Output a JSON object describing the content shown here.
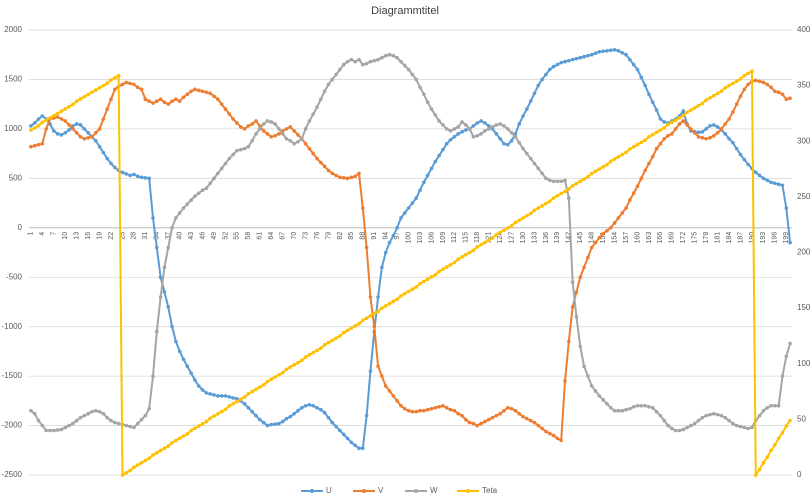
{
  "chart_data": {
    "type": "line",
    "title": "Diagrammtitel",
    "categories": [
      1,
      null,
      null,
      4,
      null,
      null,
      7,
      null,
      null,
      10,
      null,
      null,
      13,
      null,
      null,
      16,
      null,
      null,
      19,
      null,
      null,
      22,
      null,
      null,
      25,
      null,
      null,
      28,
      null,
      null,
      31,
      null,
      null,
      34,
      null,
      null,
      37,
      null,
      null,
      40,
      null,
      null,
      43,
      null,
      null,
      46,
      null,
      null,
      49,
      null,
      null,
      52,
      null,
      null,
      55,
      null,
      null,
      58,
      null,
      null,
      61,
      null,
      null,
      64,
      null,
      null,
      67,
      null,
      null,
      70,
      null,
      null,
      73,
      null,
      null,
      76,
      null,
      null,
      79,
      null,
      null,
      82,
      null,
      null,
      85,
      null,
      null,
      88,
      null,
      null,
      91,
      null,
      null,
      94,
      null,
      null,
      97,
      null,
      null,
      100,
      null,
      null,
      103,
      null,
      null,
      106,
      null,
      null,
      109,
      null,
      null,
      112,
      null,
      null,
      115,
      null,
      null,
      118,
      null,
      null,
      121,
      null,
      null,
      124,
      null,
      null,
      127,
      null,
      null,
      130,
      null,
      null,
      133,
      null,
      null,
      136,
      null,
      null,
      139,
      null,
      null,
      142,
      null,
      null,
      145,
      null,
      null,
      148,
      null,
      null,
      151,
      null,
      null,
      154,
      null,
      null,
      157,
      null,
      null,
      160,
      null,
      null,
      163,
      null,
      null,
      166,
      null,
      null,
      169,
      null,
      null,
      172,
      null,
      null,
      175,
      null,
      null,
      178,
      null,
      null,
      181,
      null,
      null,
      184,
      null,
      null,
      187,
      null,
      null,
      190,
      null,
      null,
      193,
      null,
      null,
      196,
      null,
      null,
      199,
      null
    ],
    "series": [
      {
        "name": "U",
        "color": "#5b9bd5",
        "values": [
          1030,
          1060,
          1100,
          1130,
          1100,
          1050,
          980,
          950,
          940,
          960,
          990,
          1030,
          1050,
          1040,
          1000,
          960,
          920,
          880,
          820,
          760,
          700,
          650,
          610,
          580,
          560,
          545,
          530,
          540,
          520,
          510,
          505,
          500,
          100,
          -200,
          -500,
          -650,
          -800,
          -1000,
          -1150,
          -1250,
          -1330,
          -1400,
          -1470,
          -1540,
          -1600,
          -1640,
          -1670,
          -1680,
          -1690,
          -1700,
          -1700,
          -1700,
          -1710,
          -1720,
          -1730,
          -1750,
          -1780,
          -1820,
          -1860,
          -1900,
          -1940,
          -1970,
          -2000,
          -1990,
          -1985,
          -1980,
          -1960,
          -1930,
          -1910,
          -1880,
          -1850,
          -1820,
          -1800,
          -1790,
          -1800,
          -1820,
          -1840,
          -1870,
          -1920,
          -1970,
          -2010,
          -2050,
          -2090,
          -2130,
          -2170,
          -2200,
          -2230,
          -2230,
          -1900,
          -1450,
          -1050,
          -700,
          -400,
          -250,
          -150,
          -80,
          0,
          100,
          150,
          200,
          250,
          300,
          380,
          460,
          530,
          600,
          670,
          730,
          790,
          850,
          890,
          920,
          950,
          970,
          990,
          1000,
          1030,
          1060,
          1080,
          1060,
          1030,
          1000,
          950,
          900,
          850,
          840,
          880,
          950,
          1050,
          1130,
          1200,
          1280,
          1360,
          1440,
          1500,
          1550,
          1600,
          1630,
          1650,
          1670,
          1680,
          1690,
          1700,
          1710,
          1720,
          1730,
          1740,
          1750,
          1765,
          1780,
          1785,
          1790,
          1795,
          1800,
          1790,
          1770,
          1750,
          1700,
          1650,
          1600,
          1520,
          1440,
          1350,
          1270,
          1190,
          1100,
          1070,
          1060,
          1080,
          1100,
          1130,
          1180,
          1050,
          980,
          970,
          965,
          970,
          1000,
          1030,
          1040,
          1020,
          990,
          950,
          900,
          860,
          800,
          740,
          690,
          640,
          600,
          560,
          530,
          500,
          480,
          460,
          450,
          440,
          430,
          200,
          -150
        ]
      },
      {
        "name": "V",
        "color": "#ed7d31",
        "values": [
          820,
          830,
          840,
          850,
          1000,
          1100,
          1110,
          1120,
          1100,
          1080,
          1040,
          1000,
          960,
          920,
          900,
          910,
          920,
          960,
          1000,
          1100,
          1200,
          1300,
          1400,
          1430,
          1450,
          1470,
          1460,
          1450,
          1420,
          1400,
          1300,
          1280,
          1260,
          1280,
          1300,
          1270,
          1250,
          1280,
          1300,
          1280,
          1320,
          1350,
          1380,
          1400,
          1390,
          1380,
          1370,
          1360,
          1330,
          1300,
          1250,
          1200,
          1150,
          1100,
          1060,
          1020,
          1000,
          1030,
          1050,
          1080,
          1030,
          980,
          950,
          920,
          930,
          950,
          980,
          1000,
          1020,
          980,
          940,
          900,
          850,
          800,
          750,
          700,
          660,
          620,
          580,
          550,
          530,
          510,
          505,
          500,
          510,
          520,
          550,
          200,
          -200,
          -700,
          -1000,
          -1400,
          -1500,
          -1600,
          -1650,
          -1700,
          -1750,
          -1800,
          -1830,
          -1850,
          -1860,
          -1860,
          -1850,
          -1850,
          -1840,
          -1830,
          -1820,
          -1810,
          -1800,
          -1820,
          -1840,
          -1850,
          -1880,
          -1900,
          -1940,
          -1970,
          -1980,
          -2000,
          -1980,
          -1960,
          -1940,
          -1920,
          -1900,
          -1880,
          -1850,
          -1820,
          -1830,
          -1850,
          -1880,
          -1910,
          -1930,
          -1950,
          -1970,
          -2000,
          -2030,
          -2060,
          -2080,
          -2100,
          -2130,
          -2150,
          -1550,
          -1150,
          -800,
          -650,
          -500,
          -400,
          -300,
          -200,
          -150,
          -100,
          -60,
          -30,
          0,
          50,
          100,
          150,
          200,
          280,
          350,
          420,
          500,
          580,
          650,
          720,
          800,
          850,
          900,
          930,
          950,
          1000,
          1050,
          1080,
          1040,
          1000,
          960,
          920,
          910,
          900,
          910,
          930,
          960,
          1000,
          1050,
          1100,
          1170,
          1250,
          1330,
          1400,
          1450,
          1480,
          1490,
          1480,
          1470,
          1450,
          1420,
          1380,
          1370,
          1350,
          1300,
          1310
        ]
      },
      {
        "name": "W",
        "color": "#a5a5a5",
        "values": [
          -1850,
          -1880,
          -1950,
          -2000,
          -2050,
          -2050,
          -2050,
          -2045,
          -2040,
          -2020,
          -2000,
          -1980,
          -1950,
          -1920,
          -1900,
          -1880,
          -1860,
          -1850,
          -1860,
          -1880,
          -1920,
          -1950,
          -1970,
          -1980,
          -1990,
          -2000,
          -2010,
          -2020,
          -1980,
          -1940,
          -1900,
          -1830,
          -1500,
          -1050,
          -700,
          -400,
          -200,
          0,
          100,
          150,
          200,
          240,
          280,
          320,
          350,
          380,
          400,
          450,
          500,
          550,
          600,
          650,
          700,
          740,
          780,
          790,
          800,
          820,
          880,
          950,
          1000,
          1050,
          1080,
          1070,
          1050,
          1000,
          950,
          900,
          880,
          850,
          870,
          900,
          1000,
          1080,
          1150,
          1220,
          1300,
          1380,
          1450,
          1500,
          1550,
          1600,
          1650,
          1680,
          1700,
          1680,
          1700,
          1650,
          1660,
          1680,
          1690,
          1700,
          1720,
          1740,
          1750,
          1740,
          1720,
          1680,
          1640,
          1600,
          1550,
          1500,
          1420,
          1350,
          1270,
          1200,
          1140,
          1080,
          1040,
          1000,
          980,
          1000,
          1020,
          1070,
          1040,
          1000,
          920,
          930,
          950,
          980,
          1000,
          1020,
          1040,
          1050,
          1030,
          1000,
          960,
          920,
          860,
          800,
          750,
          700,
          650,
          600,
          550,
          500,
          480,
          470,
          470,
          470,
          480,
          300,
          -550,
          -900,
          -1200,
          -1400,
          -1500,
          -1600,
          -1650,
          -1700,
          -1740,
          -1780,
          -1820,
          -1850,
          -1850,
          -1850,
          -1840,
          -1830,
          -1810,
          -1800,
          -1800,
          -1800,
          -1810,
          -1820,
          -1860,
          -1900,
          -1950,
          -2000,
          -2030,
          -2050,
          -2050,
          -2040,
          -2020,
          -2000,
          -1980,
          -1950,
          -1920,
          -1900,
          -1890,
          -1880,
          -1890,
          -1900,
          -1920,
          -1950,
          -1980,
          -2000,
          -2010,
          -2020,
          -2030,
          -2020,
          -1950,
          -1900,
          -1850,
          -1820,
          -1800,
          -1800,
          -1800,
          -1500,
          -1300,
          -1170
        ]
      },
      {
        "name": "Teta",
        "color": "#ffc000",
        "axis": "y2",
        "values": [
          310,
          312,
          314,
          317,
          319,
          321,
          323,
          325,
          327,
          329,
          331,
          333,
          336,
          338,
          340,
          342,
          344,
          346,
          348,
          350,
          352,
          355,
          357,
          359,
          0,
          2,
          4,
          7,
          9,
          11,
          13,
          15,
          18,
          20,
          22,
          24,
          26,
          29,
          31,
          33,
          35,
          37,
          40,
          42,
          44,
          46,
          48,
          51,
          53,
          55,
          57,
          59,
          62,
          64,
          66,
          68,
          70,
          73,
          75,
          77,
          79,
          81,
          84,
          86,
          88,
          90,
          92,
          95,
          97,
          99,
          101,
          103,
          106,
          108,
          110,
          112,
          114,
          117,
          119,
          121,
          123,
          125,
          128,
          130,
          132,
          134,
          136,
          139,
          141,
          143,
          145,
          147,
          150,
          152,
          154,
          156,
          158,
          161,
          163,
          165,
          167,
          169,
          172,
          174,
          176,
          178,
          180,
          183,
          185,
          187,
          189,
          191,
          194,
          196,
          198,
          200,
          202,
          205,
          207,
          209,
          211,
          213,
          216,
          218,
          220,
          222,
          224,
          227,
          229,
          231,
          233,
          235,
          238,
          240,
          242,
          244,
          246,
          249,
          251,
          253,
          255,
          257,
          260,
          262,
          264,
          266,
          268,
          271,
          273,
          275,
          277,
          279,
          282,
          284,
          286,
          288,
          290,
          293,
          295,
          297,
          299,
          301,
          304,
          306,
          308,
          310,
          312,
          315,
          317,
          319,
          321,
          323,
          326,
          328,
          330,
          332,
          334,
          337,
          339,
          341,
          343,
          345,
          348,
          350,
          352,
          354,
          356,
          359,
          361,
          363,
          0,
          5,
          11,
          16,
          22,
          27,
          33,
          38,
          44,
          49
        ]
      }
    ],
    "ylim": [
      -2500,
      2000
    ],
    "yticks": [
      -2500,
      -2000,
      -1500,
      -1000,
      -500,
      0,
      500,
      1000,
      1500,
      2000
    ],
    "y2lim": [
      0,
      400
    ],
    "y2ticks": [
      0,
      50,
      100,
      150,
      200,
      250,
      300,
      350,
      400
    ],
    "grid": true,
    "legend": "bottom"
  }
}
